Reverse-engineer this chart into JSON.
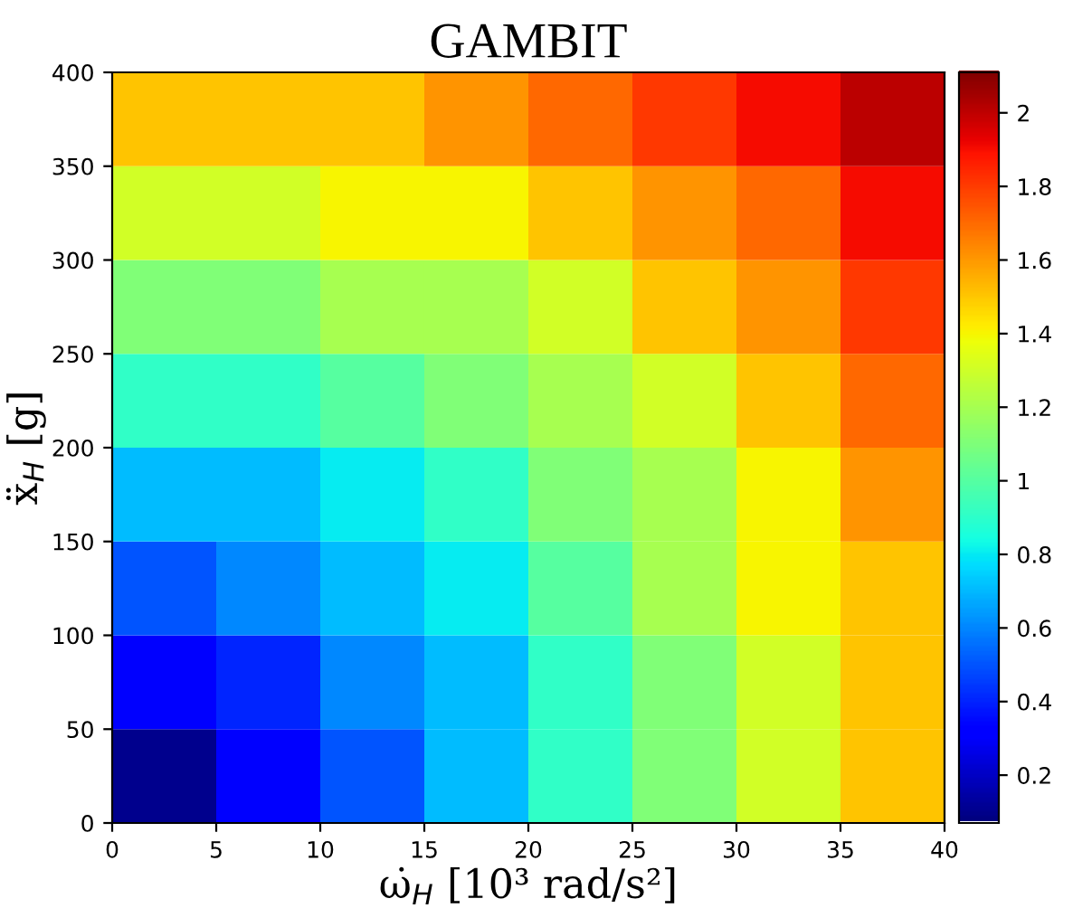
{
  "chart_data": {
    "type": "heatmap",
    "title": "GAMBIT",
    "xlabel": "ω̇$_{H}$ [10³ rad/s²]",
    "ylabel": "ẍ$_{H}$ [g]",
    "xlim": [
      0,
      40
    ],
    "xticks": [
      0,
      5,
      10,
      15,
      20,
      25,
      30,
      35,
      40
    ],
    "ylim": [
      0,
      400
    ],
    "yticks": [
      0,
      50,
      100,
      150,
      200,
      250,
      300,
      350,
      400
    ],
    "clim": [
      0.07,
      2.11
    ],
    "cticks": [
      0.2,
      0.4,
      0.6,
      0.8,
      1,
      1.2,
      1.4,
      1.6,
      1.8,
      2
    ],
    "cells": [
      [
        1.5,
        1.5,
        1.5,
        1.6,
        1.7,
        1.8,
        1.9,
        2.0
      ],
      [
        1.3,
        1.3,
        1.4,
        1.4,
        1.5,
        1.6,
        1.7,
        1.9
      ],
      [
        1.1,
        1.1,
        1.2,
        1.2,
        1.3,
        1.5,
        1.6,
        1.8
      ],
      [
        0.9,
        0.9,
        1.0,
        1.1,
        1.2,
        1.3,
        1.5,
        1.7
      ],
      [
        0.7,
        0.7,
        0.8,
        0.9,
        1.1,
        1.2,
        1.4,
        1.6
      ],
      [
        0.5,
        0.6,
        0.7,
        0.8,
        1.0,
        1.2,
        1.4,
        1.5
      ],
      [
        0.3,
        0.4,
        0.6,
        0.7,
        0.9,
        1.1,
        1.3,
        1.5
      ],
      [
        0.1,
        0.3,
        0.5,
        0.7,
        0.9,
        1.1,
        1.3,
        1.5
      ]
    ]
  }
}
